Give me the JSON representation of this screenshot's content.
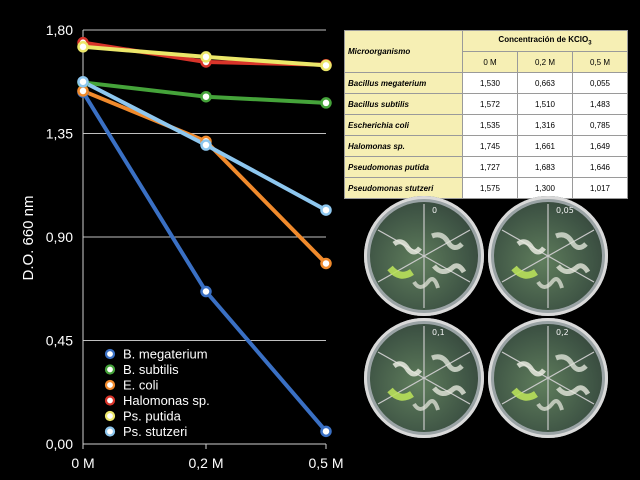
{
  "chart_data": {
    "type": "line",
    "ylabel": "D.O. 660 nm",
    "categories": [
      "0 M",
      "0,2 M",
      "0,5 M"
    ],
    "yticks": [
      "0,00",
      "0,45",
      "0,90",
      "1,35",
      "1,80"
    ],
    "ylim": [
      0,
      1.8
    ],
    "grid": true,
    "legend_position": "bottom-left",
    "series": [
      {
        "name": "B. megaterium",
        "values": [
          1.53,
          0.663,
          0.055
        ],
        "color": "#3a70c4"
      },
      {
        "name": "B. subtilis",
        "values": [
          1.572,
          1.51,
          1.483
        ],
        "color": "#45a33a"
      },
      {
        "name": "E. coli",
        "values": [
          1.535,
          1.316,
          0.785
        ],
        "color": "#f08a2c"
      },
      {
        "name": "Halomonas sp.",
        "values": [
          1.745,
          1.661,
          1.649
        ],
        "color": "#d8342a"
      },
      {
        "name": "Ps. putida",
        "values": [
          1.727,
          1.683,
          1.646
        ],
        "color": "#ece76a"
      },
      {
        "name": "Ps. stutzeri",
        "values": [
          1.575,
          1.3,
          1.017
        ],
        "color": "#8ec7ef"
      }
    ]
  },
  "table": {
    "title": "Concentración de KClO",
    "title_sub": "3",
    "micro_header": "Microorganismo",
    "columns": [
      "0 M",
      "0,2 M",
      "0,5 M"
    ],
    "rows": [
      {
        "name": "Bacillus megaterium",
        "values": [
          "1,530",
          "0,663",
          "0,055"
        ]
      },
      {
        "name": "Bacillus subtilis",
        "values": [
          "1,572",
          "1,510",
          "1,483"
        ]
      },
      {
        "name": "Escherichia coli",
        "values": [
          "1,535",
          "1,316",
          "0,785"
        ]
      },
      {
        "name": "Halomonas sp.",
        "values": [
          "1,745",
          "1,661",
          "1,649"
        ]
      },
      {
        "name": "Pseudomonas putida",
        "values": [
          "1,727",
          "1,683",
          "1,646"
        ]
      },
      {
        "name": "Pseudomonas stutzeri",
        "values": [
          "1,575",
          "1,300",
          "1,017"
        ]
      }
    ]
  },
  "plates": [
    {
      "label": "0"
    },
    {
      "label": "0,05"
    },
    {
      "label": "0,1"
    },
    {
      "label": "0,2"
    }
  ]
}
